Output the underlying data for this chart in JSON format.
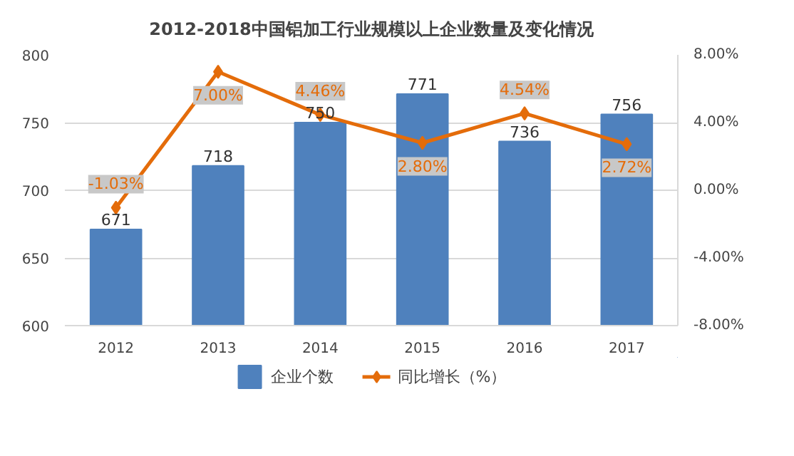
{
  "chart_data": {
    "type": "bar",
    "title": "2012-2018中国铝加工行业规模以上企业数量及变化情况",
    "categories": [
      "2012",
      "2013",
      "2014",
      "2015",
      "2016",
      "2017"
    ],
    "series": [
      {
        "name": "企业个数",
        "color": "#4f81bd",
        "values": [
          671,
          718,
          750,
          771,
          736,
          756
        ],
        "value_labels": [
          "671",
          "718",
          "750",
          "771",
          "736",
          "756"
        ]
      },
      {
        "name": "同比增长（%）",
        "type": "line",
        "axis": "y2",
        "color": "#e46c0a",
        "values": [
          -1.03,
          7.0,
          4.46,
          2.8,
          4.54,
          2.72
        ],
        "value_labels": [
          "-1.03%",
          "7.00%",
          "4.46%",
          "2.80%",
          "4.54%",
          "2.72%"
        ]
      }
    ],
    "ylim": [
      600,
      800
    ],
    "yticks": [
      600,
      650,
      700,
      750,
      800
    ],
    "y2lim": [
      -8,
      8
    ],
    "y2ticks": [
      {
        "value": -8,
        "label": "-8.00%"
      },
      {
        "value": -4,
        "label": "-4.00%"
      },
      {
        "value": 0,
        "label": "0.00%"
      },
      {
        "value": 4,
        "label": "4.00%"
      },
      {
        "value": 8,
        "label": "8.00%"
      }
    ],
    "grid": "y",
    "legend": "bottom",
    "marker": "diamond",
    "line_style": "solid"
  }
}
